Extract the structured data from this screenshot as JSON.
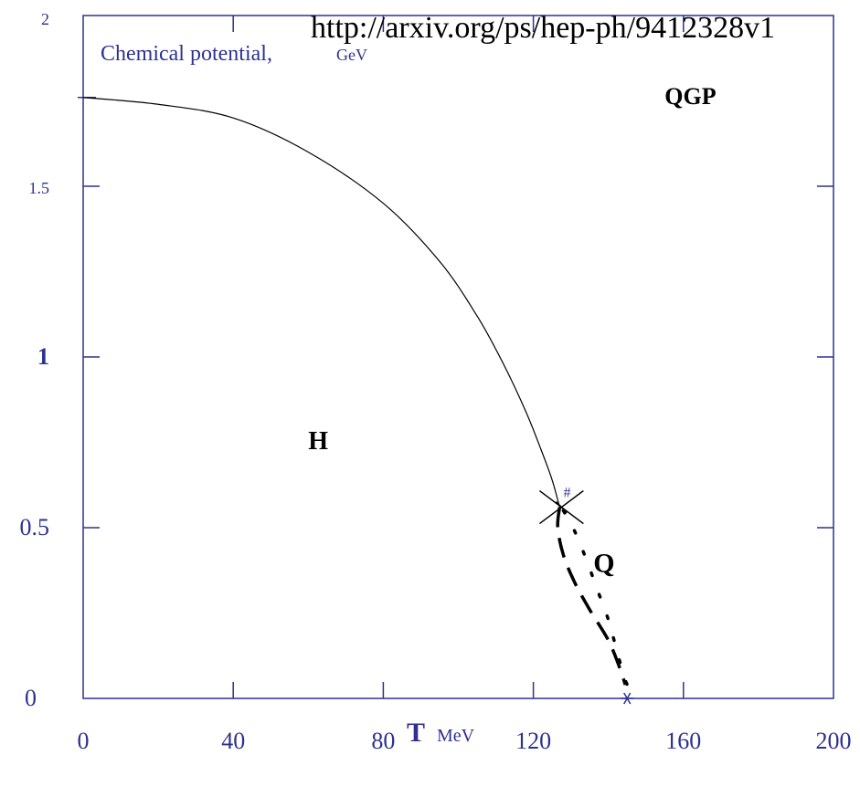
{
  "stamp": "http://arxiv.org/ps/hep-ph/9412328v1",
  "colors": {
    "axis": "#2e3192",
    "curve": "#000000",
    "background": "#ffffff"
  },
  "chart_data": {
    "type": "line",
    "title": "",
    "xlabel": "T",
    "xlabel_unit": "MeV",
    "ylabel": "Chemical potential,",
    "ylabel_unit": "GeV",
    "xlim": [
      0,
      200
    ],
    "ylim": [
      0,
      2
    ],
    "xticks": [
      0,
      40,
      80,
      120,
      160,
      200
    ],
    "yticks": [
      0,
      0.5,
      1,
      1.5,
      2
    ],
    "xtick_labels": [
      "0",
      "40",
      "80",
      "120",
      "160",
      "200"
    ],
    "ytick_labels": [
      "0",
      "0.5",
      "1",
      "1.5",
      "2"
    ],
    "grid": false,
    "series": [
      {
        "style": "solid",
        "x": [
          0,
          20,
          40,
          60,
          80,
          95,
          105,
          112,
          118,
          122,
          125,
          127
        ],
        "y": [
          1.76,
          1.74,
          1.7,
          1.6,
          1.45,
          1.28,
          1.12,
          0.98,
          0.84,
          0.73,
          0.64,
          0.56
        ]
      },
      {
        "style": "dashed",
        "x": [
          127,
          126.5,
          128,
          131,
          135,
          140,
          143,
          144.5
        ],
        "y": [
          0.56,
          0.5,
          0.42,
          0.34,
          0.26,
          0.17,
          0.09,
          0.04
        ]
      },
      {
        "style": "dotted",
        "x": [
          128,
          131,
          134,
          137,
          140,
          142,
          144,
          145
        ],
        "y": [
          0.55,
          0.49,
          0.41,
          0.32,
          0.23,
          0.15,
          0.07,
          0.04
        ]
      }
    ],
    "markers": [
      {
        "symbol": "cross",
        "x": 127.5,
        "y": 0.56
      },
      {
        "symbol": "star",
        "x": 145,
        "y": 0.0
      }
    ],
    "annotations": [
      {
        "text": "QGP",
        "x": 155,
        "y": 1.74
      },
      {
        "text": "H",
        "x": 60,
        "y": 0.73
      },
      {
        "text": "Q",
        "x": 136,
        "y": 0.37
      },
      {
        "text": "#",
        "x": 128,
        "y": 0.59
      }
    ]
  }
}
